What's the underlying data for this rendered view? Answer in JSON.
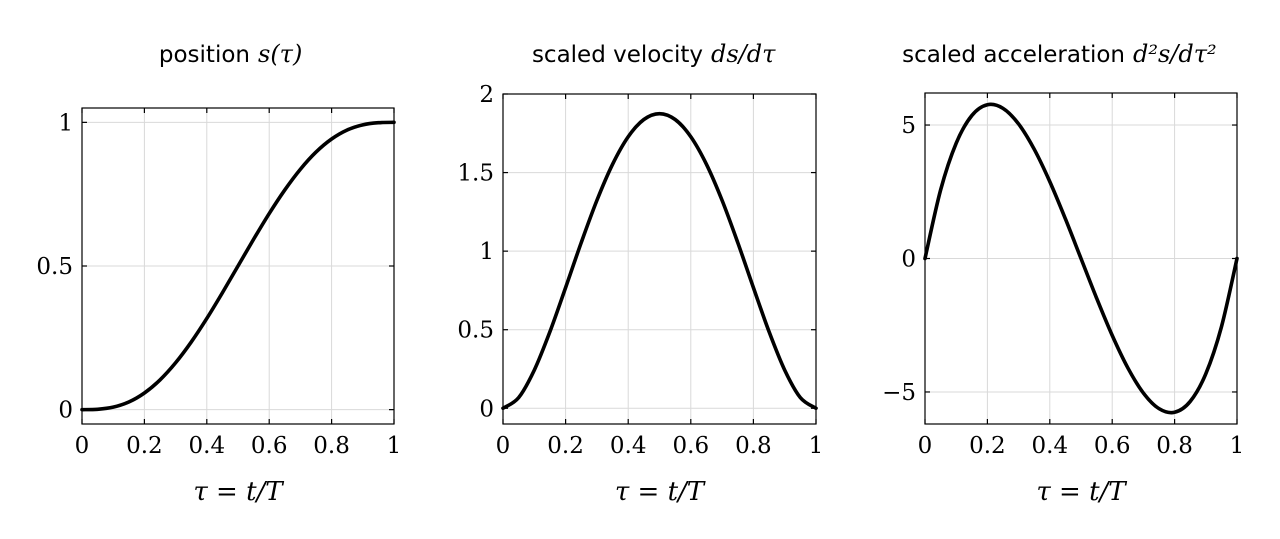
{
  "chart_data": [
    {
      "type": "line",
      "title": "position",
      "title_math": "s(τ)",
      "xlabel": "τ = t/T",
      "xlim": [
        0,
        1
      ],
      "ylim": [
        -0.05,
        1.05
      ],
      "x_ticks": [
        "0",
        "0.2",
        "0.4",
        "0.6",
        "0.8",
        "1"
      ],
      "y_ticks": [
        "0",
        "0.5",
        "1"
      ],
      "y_tick_values": [
        0,
        0.5,
        1
      ],
      "grid": true,
      "x": [
        0,
        0.05,
        0.1,
        0.15,
        0.2,
        0.25,
        0.3,
        0.35,
        0.4,
        0.45,
        0.5,
        0.55,
        0.6,
        0.65,
        0.7,
        0.75,
        0.8,
        0.85,
        0.9,
        0.95,
        1
      ],
      "y": [
        0,
        0.0012,
        0.0086,
        0.0266,
        0.058,
        0.1035,
        0.1631,
        0.2352,
        0.3174,
        0.4069,
        0.5,
        0.5931,
        0.6826,
        0.7648,
        0.8369,
        0.8965,
        0.942,
        0.9734,
        0.9914,
        0.9988,
        1
      ]
    },
    {
      "type": "line",
      "title": "scaled velocity",
      "title_math": "ds/dτ",
      "xlabel": "τ = t/T",
      "xlim": [
        0,
        1
      ],
      "ylim": [
        -0.1,
        2
      ],
      "x_ticks": [
        "0",
        "0.2",
        "0.4",
        "0.6",
        "0.8",
        "1"
      ],
      "y_ticks": [
        "0",
        "0.5",
        "1",
        "1.5",
        "2"
      ],
      "y_tick_values": [
        0,
        0.5,
        1,
        1.5,
        2
      ],
      "grid": true,
      "x": [
        0,
        0.05,
        0.1,
        0.15,
        0.2,
        0.25,
        0.3,
        0.35,
        0.4,
        0.45,
        0.5,
        0.55,
        0.6,
        0.65,
        0.7,
        0.75,
        0.8,
        0.85,
        0.9,
        0.95,
        1
      ],
      "y": [
        0,
        0.0677,
        0.243,
        0.4877,
        0.768,
        1.0547,
        1.323,
        1.5527,
        1.728,
        1.8377,
        1.875,
        1.8377,
        1.728,
        1.5527,
        1.323,
        1.0547,
        0.768,
        0.4877,
        0.243,
        0.0677,
        0
      ]
    },
    {
      "type": "line",
      "title": "scaled acceleration",
      "title_math": "d²s/dτ²",
      "xlabel": "τ = t/T",
      "xlim": [
        0,
        1
      ],
      "ylim": [
        -6.2,
        6.2
      ],
      "x_ticks": [
        "0",
        "0.2",
        "0.4",
        "0.6",
        "0.8",
        "1"
      ],
      "y_ticks": [
        "−5",
        "0",
        "5"
      ],
      "y_tick_values": [
        -5,
        0,
        5
      ],
      "grid": true,
      "x": [
        0,
        0.05,
        0.1,
        0.15,
        0.2,
        0.25,
        0.3,
        0.35,
        0.4,
        0.45,
        0.5,
        0.55,
        0.6,
        0.65,
        0.7,
        0.75,
        0.8,
        0.85,
        0.9,
        0.95,
        1
      ],
      "y": [
        0,
        2.565,
        4.32,
        5.355,
        5.76,
        5.625,
        5.04,
        4.095,
        2.88,
        1.485,
        0,
        -1.485,
        -2.88,
        -4.095,
        -5.04,
        -5.625,
        -5.76,
        -5.355,
        -4.32,
        -2.565,
        0
      ]
    }
  ]
}
